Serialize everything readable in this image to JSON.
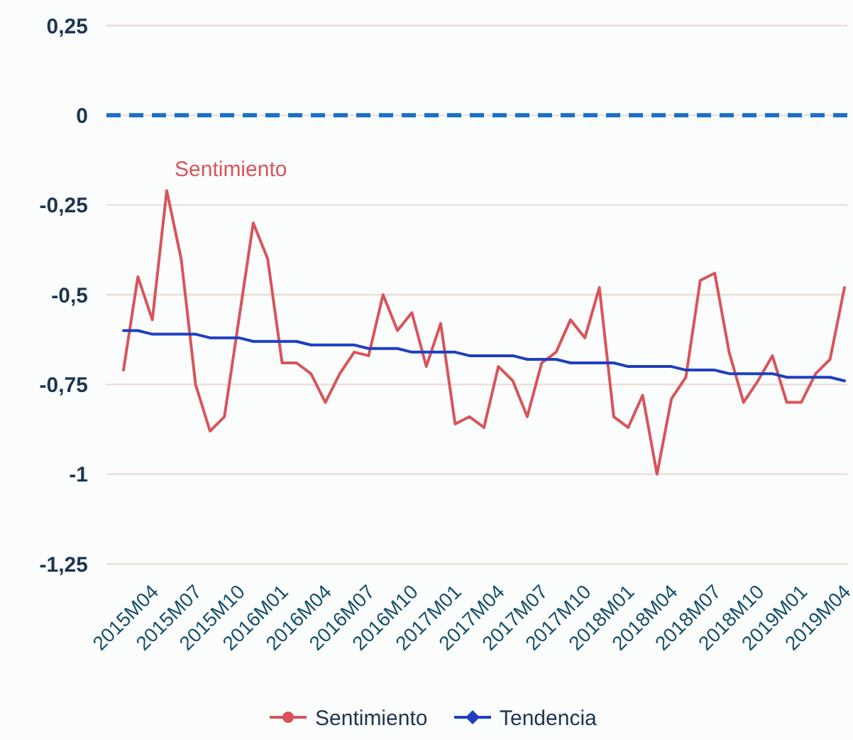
{
  "chart_data": {
    "type": "line",
    "categories": [
      "2015M04",
      null,
      null,
      "2015M07",
      null,
      null,
      "2015M10",
      null,
      null,
      "2016M01",
      null,
      null,
      "2016M04",
      null,
      null,
      "2016M07",
      null,
      null,
      "2016M10",
      null,
      null,
      "2017M01",
      null,
      null,
      "2017M04",
      null,
      null,
      "2017M07",
      null,
      null,
      "2017M10",
      null,
      null,
      "2018M01",
      null,
      null,
      "2018M04",
      null,
      null,
      "2018M07",
      null,
      null,
      "2018M10",
      null,
      null,
      "2019M01",
      null,
      null,
      "2019M04",
      null,
      null
    ],
    "series": [
      {
        "name": "Sentimiento",
        "color": "#d9545a",
        "values": [
          -0.71,
          -0.45,
          -0.57,
          -0.21,
          -0.4,
          -0.75,
          -0.88,
          -0.84,
          -0.57,
          -0.3,
          -0.4,
          -0.69,
          -0.69,
          -0.72,
          -0.8,
          -0.72,
          -0.66,
          -0.67,
          -0.5,
          -0.6,
          -0.55,
          -0.7,
          -0.58,
          -0.86,
          -0.84,
          -0.87,
          -0.7,
          -0.74,
          -0.84,
          -0.69,
          -0.66,
          -0.57,
          -0.62,
          -0.48,
          -0.84,
          -0.87,
          -0.78,
          -1.0,
          -0.79,
          -0.73,
          -0.46,
          -0.44,
          -0.66,
          -0.8,
          -0.74,
          -0.67,
          -0.8,
          -0.8,
          -0.72,
          -0.68,
          -0.48
        ]
      },
      {
        "name": "Tendencia",
        "color": "#1f3fbf",
        "values": [
          -0.6,
          -0.6,
          -0.61,
          -0.61,
          -0.61,
          -0.61,
          -0.62,
          -0.62,
          -0.62,
          -0.63,
          -0.63,
          -0.63,
          -0.63,
          -0.64,
          -0.64,
          -0.64,
          -0.64,
          -0.65,
          -0.65,
          -0.65,
          -0.66,
          -0.66,
          -0.66,
          -0.66,
          -0.67,
          -0.67,
          -0.67,
          -0.67,
          -0.68,
          -0.68,
          -0.68,
          -0.69,
          -0.69,
          -0.69,
          -0.69,
          -0.7,
          -0.7,
          -0.7,
          -0.7,
          -0.71,
          -0.71,
          -0.71,
          -0.72,
          -0.72,
          -0.72,
          -0.72,
          -0.73,
          -0.73,
          -0.73,
          -0.73,
          -0.74
        ]
      }
    ],
    "ylim": [
      -1.25,
      0.25
    ],
    "yticks": [
      {
        "value": 0.25,
        "label": "0,25"
      },
      0,
      {
        "value": -0.25,
        "label": "-0,25"
      },
      {
        "value": -0.5,
        "label": "-0,5"
      },
      {
        "value": -0.75,
        "label": "-0,75"
      },
      -1,
      {
        "value": -1.25,
        "label": "-1,25"
      }
    ],
    "grid": "y",
    "ref_lines": [
      {
        "axis": "y",
        "value": 0,
        "color": "#1b6fc4",
        "line_style": "dashed"
      }
    ],
    "annotations": [
      "Sentimiento"
    ],
    "legend": "bottom",
    "marker": "none",
    "line_style": "solid"
  }
}
